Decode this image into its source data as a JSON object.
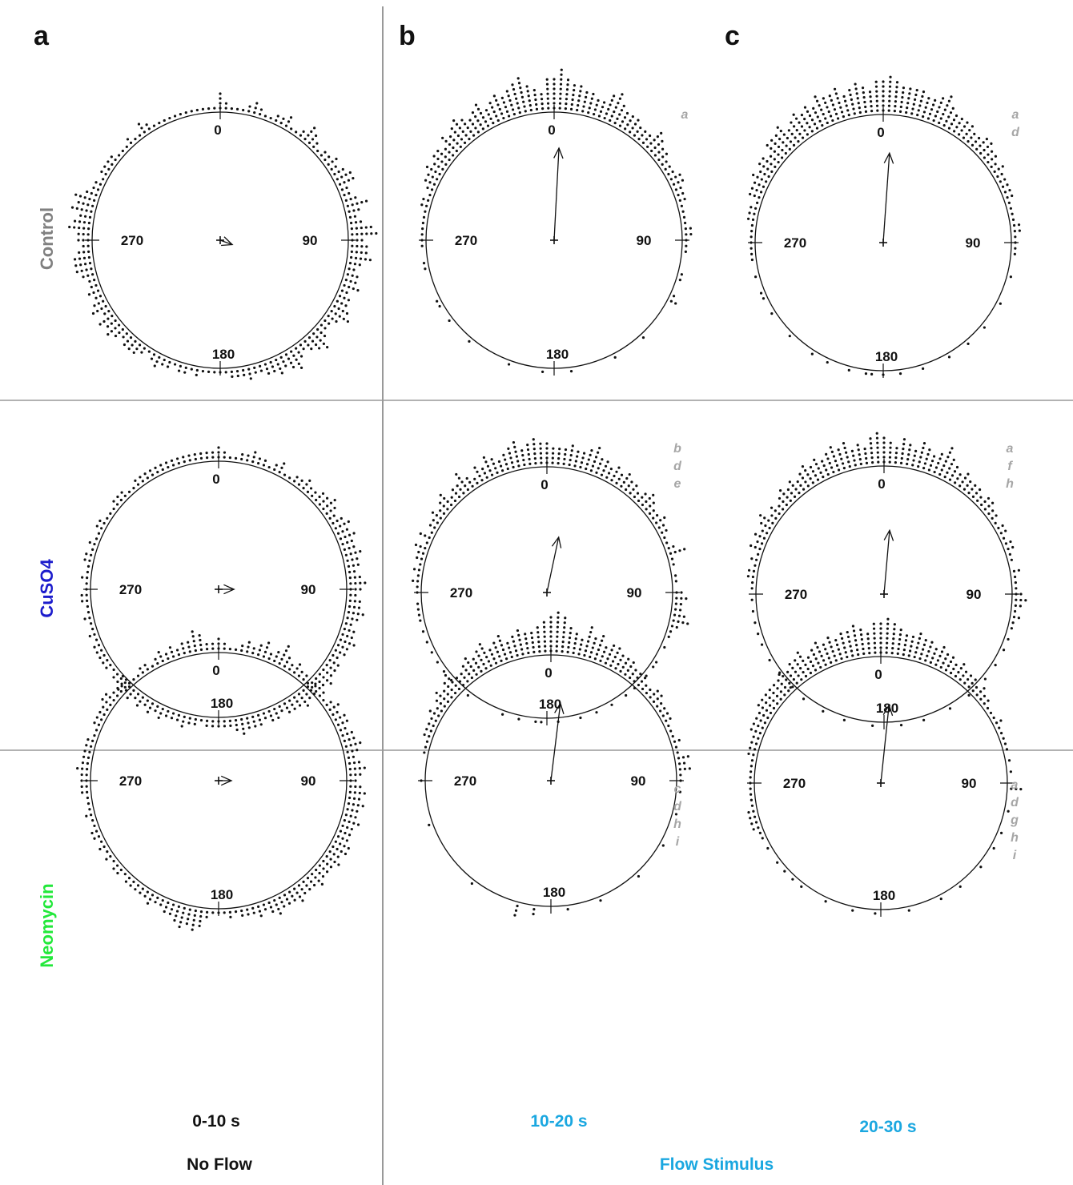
{
  "chart_data": {
    "type": "scatter",
    "subtype": "circular-dot-histogram",
    "panel_letters": [
      "a",
      "b",
      "c"
    ],
    "rows": [
      {
        "label": "Control",
        "color": "#808080"
      },
      {
        "label": "CuSO4",
        "color": "#1c1ccc"
      },
      {
        "label": "Neomycin",
        "color": "#22e83a"
      }
    ],
    "columns": [
      {
        "time": "0-10 s",
        "time_color": "#111111"
      },
      {
        "time": "10-20 s",
        "time_color": "#1aa7e0"
      },
      {
        "time": "20-30 s",
        "time_color": "#1aa7e0"
      }
    ],
    "conditions": [
      {
        "label": "No Flow",
        "color": "#111111"
      },
      {
        "label": "Flow Stimulus",
        "color": "#1aa7e0"
      }
    ],
    "angle_labels": [
      "0",
      "90",
      "180",
      "270"
    ],
    "dot_color": "#111111",
    "panels": [
      {
        "row": 0,
        "col": 0,
        "mean_angle": 110,
        "r_length": 0.1,
        "sig": [],
        "counts": [
          4,
          2,
          1,
          1,
          1,
          2,
          3,
          2,
          1,
          1,
          2,
          2,
          3,
          1,
          1,
          2,
          4,
          3,
          2,
          1,
          2,
          2,
          3,
          2,
          3,
          4,
          4,
          2,
          2,
          3,
          5,
          3,
          2,
          3,
          5,
          6,
          3,
          4,
          4,
          5,
          3,
          2,
          3,
          3,
          4,
          2,
          3,
          3,
          4,
          5,
          3,
          2,
          2,
          3,
          5,
          4,
          3,
          2,
          3,
          5,
          4,
          3,
          4,
          3,
          3,
          2,
          2,
          3,
          2,
          2,
          2,
          1,
          1,
          1,
          1,
          1,
          2,
          1,
          2,
          2,
          1,
          2,
          2,
          3,
          2,
          1,
          2,
          3,
          3,
          3,
          2,
          3,
          4,
          3,
          4,
          2,
          4,
          3,
          2,
          3,
          2,
          2,
          3,
          4,
          4,
          4,
          3,
          2,
          3,
          3,
          5,
          4,
          3,
          5,
          4,
          5,
          3,
          2,
          2,
          1,
          2,
          2,
          2,
          2,
          1,
          1,
          1,
          2,
          1,
          1,
          3,
          2,
          1,
          1,
          1,
          1,
          1,
          1,
          1,
          1,
          1,
          1,
          1,
          1
        ]
      },
      {
        "row": 0,
        "col": 1,
        "mean_angle": 3,
        "r_length": 0.72,
        "sig": [
          "a"
        ],
        "counts": [
          7,
          9,
          7,
          6,
          6,
          5,
          5,
          4,
          4,
          6,
          7,
          5,
          4,
          4,
          4,
          3,
          3,
          3,
          5,
          4,
          3,
          3,
          2,
          2,
          2,
          3,
          3,
          2,
          2,
          2,
          1,
          1,
          1,
          1,
          2,
          2,
          1,
          1,
          1,
          0,
          0,
          0,
          1,
          1,
          0,
          0,
          1,
          2,
          0,
          0,
          0,
          0,
          0,
          0,
          0,
          1,
          0,
          0,
          0,
          0,
          0,
          1,
          0,
          0,
          0,
          0,
          0,
          0,
          0,
          1,
          0,
          0,
          0,
          0,
          1,
          0,
          0,
          0,
          0,
          0,
          1,
          0,
          0,
          0,
          0,
          0,
          0,
          0,
          1,
          0,
          0,
          0,
          0,
          1,
          0,
          0,
          1,
          1,
          0,
          0,
          0,
          0,
          0,
          1,
          1,
          0,
          0,
          1,
          1,
          1,
          1,
          1,
          1,
          1,
          2,
          2,
          1,
          2,
          3,
          3,
          4,
          3,
          4,
          4,
          3,
          5,
          4,
          5,
          6,
          5,
          4,
          5,
          6,
          4,
          5,
          6,
          5,
          6,
          7,
          8,
          6,
          5,
          4,
          7
        ]
      },
      {
        "row": 0,
        "col": 2,
        "mean_angle": 4,
        "r_length": 0.7,
        "sig": [
          "a",
          "d"
        ],
        "counts": [
          7,
          8,
          7,
          6,
          6,
          6,
          6,
          5,
          5,
          6,
          7,
          5,
          4,
          4,
          4,
          4,
          3,
          3,
          4,
          4,
          3,
          3,
          2,
          3,
          2,
          2,
          2,
          2,
          2,
          1,
          1,
          1,
          1,
          2,
          2,
          1,
          1,
          1,
          1,
          0,
          0,
          0,
          1,
          0,
          0,
          0,
          0,
          1,
          0,
          0,
          0,
          0,
          1,
          0,
          0,
          0,
          1,
          0,
          0,
          0,
          1,
          0,
          0,
          0,
          0,
          1,
          0,
          0,
          0,
          1,
          0,
          0,
          1,
          0,
          1,
          1,
          0,
          0,
          1,
          0,
          0,
          0,
          1,
          0,
          0,
          1,
          0,
          0,
          0,
          0,
          1,
          0,
          0,
          0,
          0,
          1,
          0,
          0,
          1,
          1,
          0,
          0,
          1,
          0,
          0,
          1,
          1,
          1,
          1,
          1,
          1,
          1,
          2,
          2,
          2,
          1,
          3,
          3,
          3,
          4,
          3,
          4,
          4,
          3,
          5,
          5,
          5,
          6,
          4,
          5,
          6,
          5,
          6,
          5,
          7,
          6,
          6,
          7,
          5,
          6,
          7,
          6,
          5,
          7
        ]
      },
      {
        "row": 1,
        "col": 0,
        "mean_angle": 90,
        "r_length": 0.12,
        "sig": [],
        "counts": [
          3,
          2,
          1,
          1,
          2,
          2,
          3,
          2,
          2,
          1,
          2,
          3,
          1,
          1,
          2,
          2,
          3,
          2,
          2,
          3,
          3,
          4,
          3,
          2,
          3,
          4,
          3,
          4,
          3,
          3,
          4,
          3,
          3,
          2,
          3,
          4,
          3,
          2,
          3,
          3,
          4,
          3,
          2,
          3,
          3,
          4,
          3,
          3,
          2,
          3,
          3,
          3,
          4,
          3,
          2,
          3,
          3,
          4,
          3,
          3,
          3,
          2,
          3,
          3,
          2,
          3,
          3,
          3,
          4,
          3,
          2,
          2,
          2,
          2,
          2,
          1,
          2,
          2,
          3,
          2,
          2,
          2,
          3,
          2,
          3,
          2,
          3,
          2,
          3,
          2,
          3,
          2,
          2,
          1,
          2,
          2,
          2,
          2,
          2,
          1,
          2,
          1,
          1,
          2,
          1,
          1,
          2,
          2,
          1,
          1,
          2,
          1,
          1,
          2,
          2,
          1,
          2,
          1,
          1,
          2,
          2,
          1,
          1,
          1,
          2,
          2,
          2,
          1,
          1,
          2,
          2,
          2,
          2,
          2,
          2,
          2,
          2,
          2,
          2,
          2,
          2,
          2,
          2,
          2
        ]
      },
      {
        "row": 1,
        "col": 1,
        "mean_angle": 12,
        "r_length": 0.45,
        "sig": [
          "b",
          "d",
          "e"
        ],
        "counts": [
          5,
          4,
          4,
          4,
          5,
          4,
          4,
          5,
          6,
          4,
          4,
          3,
          4,
          3,
          4,
          3,
          3,
          2,
          3,
          4,
          3,
          2,
          2,
          3,
          2,
          2,
          1,
          1,
          2,
          4,
          1,
          1,
          0,
          1,
          1,
          0,
          2,
          3,
          2,
          2,
          3,
          4,
          2,
          1,
          1,
          0,
          1,
          0,
          0,
          1,
          1,
          0,
          1,
          0,
          0,
          1,
          0,
          1,
          0,
          0,
          1,
          0,
          0,
          1,
          0,
          0,
          1,
          0,
          0,
          0,
          1,
          0,
          0,
          1,
          1,
          0,
          0,
          1,
          0,
          0,
          1,
          0,
          0,
          0,
          0,
          0,
          0,
          1,
          0,
          0,
          0,
          1,
          0,
          1,
          0,
          1,
          0,
          1,
          0,
          1,
          0,
          1,
          0,
          1,
          1,
          1,
          1,
          0,
          1,
          1,
          2,
          1,
          2,
          1,
          2,
          2,
          3,
          1,
          3,
          1,
          2,
          2,
          3,
          2,
          3,
          4,
          2,
          3,
          3,
          5,
          3,
          2,
          4,
          3,
          5,
          4,
          3,
          4,
          5,
          6,
          4,
          5,
          6,
          5
        ]
      },
      {
        "row": 1,
        "col": 2,
        "mean_angle": 5,
        "r_length": 0.5,
        "sig": [
          "a",
          "f",
          "h"
        ],
        "counts": [
          6,
          5,
          4,
          6,
          5,
          4,
          6,
          5,
          4,
          5,
          7,
          5,
          4,
          3,
          4,
          3,
          3,
          3,
          2,
          3,
          3,
          2,
          2,
          1,
          2,
          2,
          1,
          2,
          2,
          1,
          1,
          0,
          2,
          1,
          1,
          1,
          2,
          3,
          2,
          1,
          2,
          1,
          1,
          0,
          1,
          0,
          1,
          0,
          0,
          1,
          0,
          0,
          1,
          0,
          0,
          0,
          1,
          0,
          0,
          0,
          1,
          0,
          0,
          0,
          0,
          1,
          0,
          0,
          0,
          1,
          0,
          0,
          0,
          0,
          1,
          0,
          0,
          0,
          0,
          1,
          0,
          0,
          0,
          1,
          0,
          0,
          0,
          1,
          0,
          0,
          1,
          0,
          0,
          1,
          0,
          0,
          1,
          0,
          0,
          1,
          0,
          1,
          0,
          1,
          0,
          1,
          0,
          1,
          0,
          1,
          1,
          2,
          2,
          1,
          2,
          1,
          3,
          2,
          3,
          2,
          3,
          4,
          2,
          3,
          2,
          3,
          4,
          3,
          4,
          3,
          4,
          5,
          4,
          5,
          4,
          5,
          6,
          5,
          6,
          4,
          5,
          4,
          6,
          7
        ]
      },
      {
        "row": 2,
        "col": 0,
        "mean_angle": 90,
        "r_length": 0.1,
        "sig": [],
        "counts": [
          3,
          2,
          1,
          1,
          2,
          3,
          2,
          3,
          4,
          2,
          3,
          5,
          3,
          2,
          3,
          2,
          2,
          1,
          2,
          3,
          2,
          1,
          2,
          3,
          2,
          3,
          3,
          2,
          3,
          3,
          4,
          3,
          2,
          3,
          4,
          3,
          2,
          3,
          4,
          3,
          4,
          3,
          3,
          4,
          3,
          3,
          3,
          4,
          4,
          3,
          4,
          3,
          3,
          3,
          4,
          3,
          3,
          3,
          4,
          3,
          3,
          3,
          4,
          3,
          2,
          3,
          2,
          2,
          2,
          1,
          2,
          1,
          1,
          1,
          2,
          4,
          5,
          4,
          5,
          4,
          3,
          3,
          2,
          2,
          3,
          2,
          2,
          2,
          2,
          2,
          1,
          2,
          2,
          1,
          2,
          1,
          2,
          1,
          2,
          2,
          1,
          1,
          2,
          1,
          1,
          1,
          2,
          2,
          2,
          2,
          3,
          2,
          2,
          2,
          2,
          2,
          1,
          1,
          2,
          2,
          2,
          2,
          3,
          3,
          2,
          2,
          2,
          3,
          1,
          1,
          2,
          2,
          1,
          2,
          3,
          2,
          3,
          2,
          3,
          3,
          5,
          4,
          2,
          2
        ]
      },
      {
        "row": 2,
        "col": 1,
        "mean_angle": 7,
        "r_length": 0.62,
        "sig": [
          "c",
          "d",
          "h",
          "i"
        ],
        "counts": [
          8,
          9,
          8,
          6,
          5,
          4,
          7,
          5,
          6,
          4,
          5,
          5,
          4,
          4,
          4,
          3,
          3,
          3,
          2,
          2,
          3,
          3,
          2,
          2,
          2,
          2,
          1,
          1,
          1,
          2,
          1,
          1,
          3,
          2,
          3,
          1,
          1,
          0,
          1,
          0,
          0,
          0,
          1,
          0,
          0,
          0,
          0,
          0,
          1,
          0,
          0,
          0,
          0,
          0,
          0,
          1,
          0,
          0,
          0,
          0,
          0,
          0,
          0,
          1,
          0,
          0,
          0,
          0,
          0,
          1,
          0,
          0,
          0,
          0,
          0,
          2,
          0,
          0,
          3,
          0,
          0,
          0,
          0,
          0,
          0,
          0,
          0,
          1,
          0,
          0,
          0,
          0,
          0,
          0,
          0,
          0,
          0,
          0,
          0,
          0,
          1,
          0,
          0,
          0,
          0,
          0,
          0,
          0,
          1,
          0,
          0,
          0,
          0,
          1,
          1,
          1,
          2,
          2,
          2,
          2,
          3,
          2,
          3,
          4,
          3,
          4,
          5,
          3,
          3,
          4,
          5,
          4,
          5,
          6,
          4,
          5,
          6,
          4,
          5,
          6,
          5,
          5,
          6,
          7
        ]
      },
      {
        "row": 2,
        "col": 2,
        "mean_angle": 6,
        "r_length": 0.62,
        "sig": [
          "a",
          "d",
          "g",
          "h",
          "i"
        ],
        "counts": [
          7,
          8,
          7,
          6,
          5,
          5,
          6,
          5,
          5,
          4,
          5,
          4,
          4,
          3,
          4,
          3,
          3,
          3,
          2,
          3,
          2,
          2,
          1,
          1,
          1,
          2,
          1,
          1,
          1,
          1,
          1,
          0,
          1,
          0,
          1,
          0,
          0,
          3,
          0,
          0,
          0,
          1,
          0,
          0,
          0,
          1,
          0,
          0,
          1,
          0,
          0,
          0,
          1,
          0,
          0,
          0,
          0,
          1,
          0,
          0,
          0,
          1,
          0,
          0,
          0,
          0,
          0,
          1,
          0,
          0,
          0,
          0,
          0,
          1,
          0,
          0,
          0,
          1,
          0,
          0,
          0,
          0,
          1,
          0,
          0,
          0,
          0,
          1,
          0,
          1,
          0,
          1,
          0,
          1,
          0,
          0,
          1,
          0,
          1,
          1,
          2,
          2,
          2,
          2,
          1,
          1,
          1,
          1,
          1,
          1,
          1,
          1,
          1,
          2,
          2,
          2,
          2,
          3,
          3,
          3,
          3,
          4,
          4,
          4,
          4,
          4,
          4,
          5,
          4,
          5,
          5,
          6,
          4,
          5,
          6,
          5,
          6,
          5,
          6,
          6,
          7,
          6,
          5,
          7
        ]
      }
    ]
  }
}
